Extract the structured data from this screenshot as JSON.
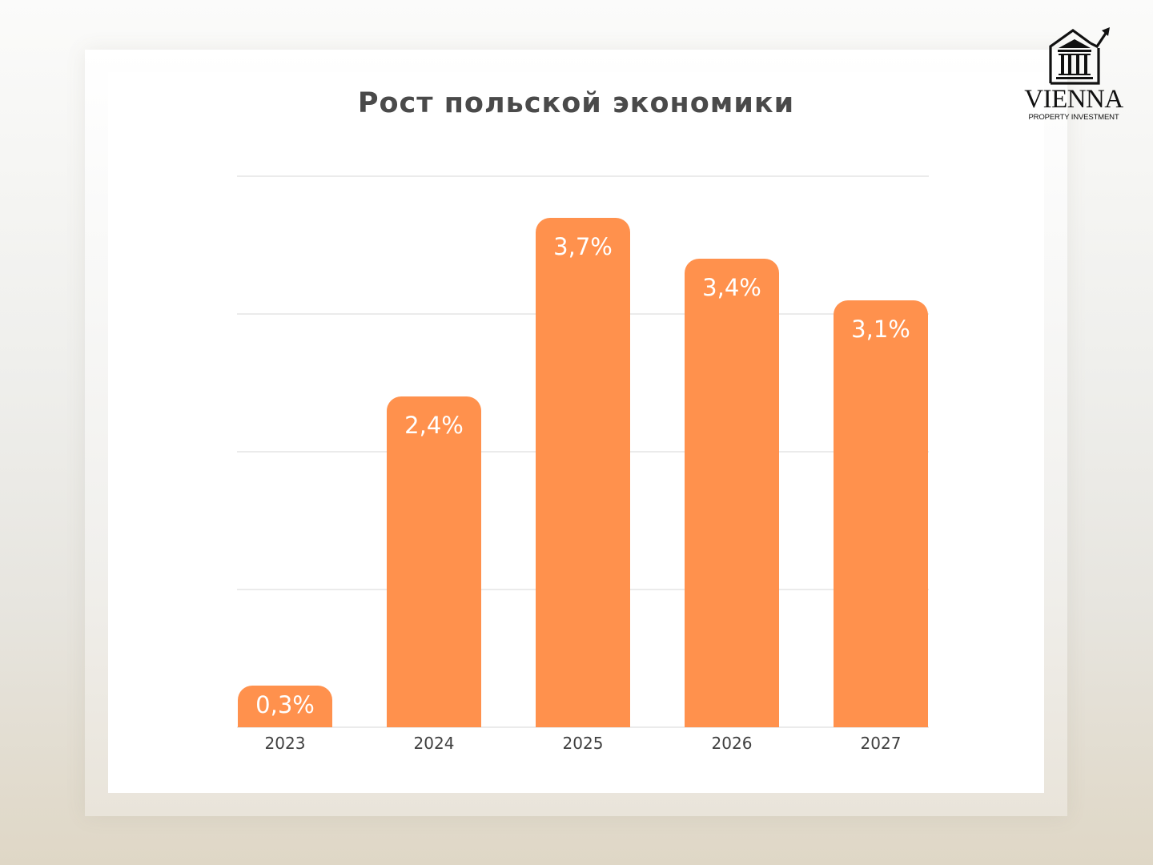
{
  "brand": {
    "name": "VIENNA",
    "tagline": "PROPERTY INVESTMENT",
    "icon": "building-with-rising-arrow-icon"
  },
  "colors": {
    "bar": "#ff914d",
    "bar_label": "#ffffff",
    "title": "#4a4a4a",
    "axis_label": "#3f3f3f",
    "gridline": "#ebebeb"
  },
  "chart_data": {
    "type": "bar",
    "title": "Рост польской экономики",
    "xlabel": "",
    "ylabel": "",
    "categories": [
      "2023",
      "2024",
      "2025",
      "2026",
      "2027"
    ],
    "values": [
      0.3,
      2.4,
      3.7,
      3.4,
      3.1
    ],
    "value_labels": [
      "0,3%",
      "2,4%",
      "3,7%",
      "3,4%",
      "3,1%"
    ],
    "unit": "%",
    "ylim": [
      0,
      4
    ],
    "gridlines": [
      0,
      1,
      2,
      3,
      4
    ],
    "grid": true,
    "y_tick_labels_visible": false,
    "legend": null
  }
}
